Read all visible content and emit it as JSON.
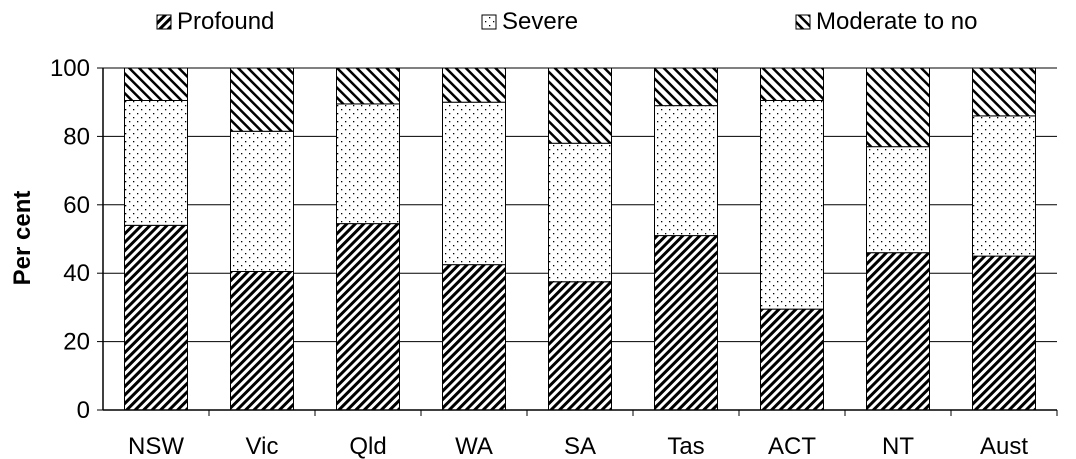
{
  "chart_data": {
    "type": "bar",
    "stacked": true,
    "categories": [
      "NSW",
      "Vic",
      "Qld",
      "WA",
      "SA",
      "Tas",
      "ACT",
      "NT",
      "Aust"
    ],
    "series": [
      {
        "name": "Profound",
        "values": [
          54,
          40.5,
          54.5,
          42.5,
          37.5,
          51,
          29.5,
          46,
          45
        ],
        "pattern": "dense-diagonal-down"
      },
      {
        "name": "Severe",
        "values": [
          36.5,
          41,
          35,
          47.5,
          40.5,
          38,
          61,
          31,
          41
        ],
        "pattern": "dots"
      },
      {
        "name": "Moderate to no",
        "values": [
          9.5,
          18.5,
          10.5,
          10,
          22,
          11,
          9.5,
          23,
          14
        ],
        "pattern": "diagonal-up"
      }
    ],
    "ylabel": "Per cent",
    "xlabel": "",
    "ylim": [
      0,
      100
    ],
    "yticks": [
      0,
      20,
      40,
      60,
      80,
      100
    ],
    "grid": true,
    "legend_position": "top"
  }
}
